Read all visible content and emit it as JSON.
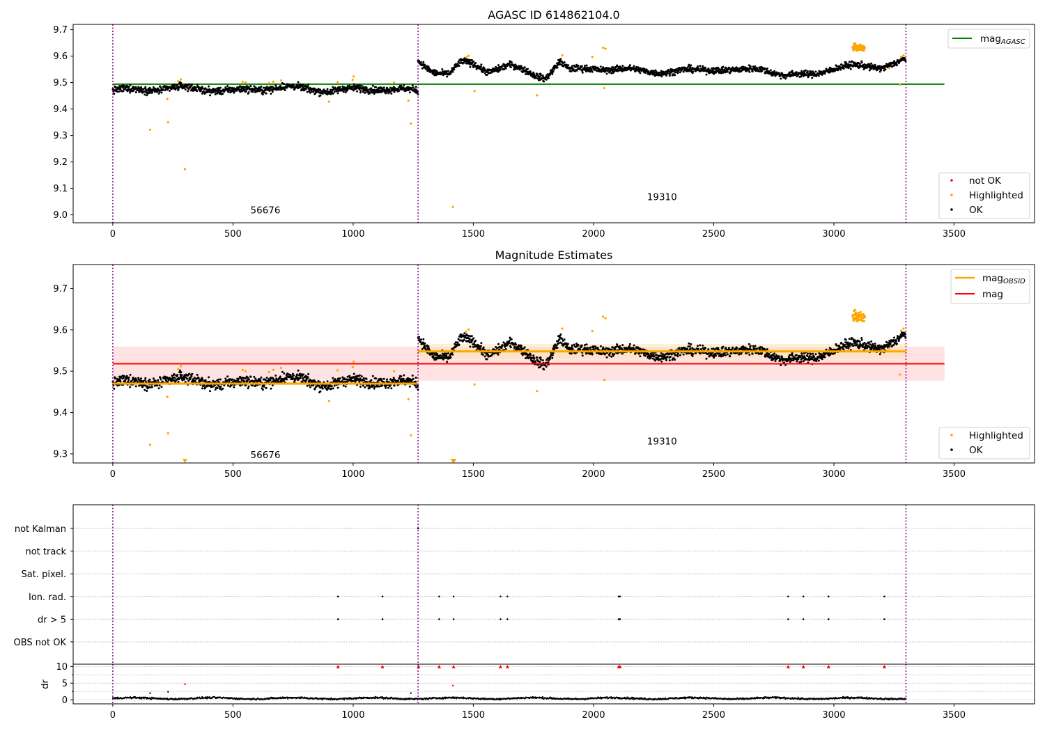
{
  "figure": {
    "top_title": "AGASC ID 614862104.0",
    "middle_title": "Magnitude Estimates"
  },
  "colors": {
    "ok": "#000000",
    "highlighted": "#ffa500",
    "not_ok": "#ff0000",
    "mag_agasc": "#008000",
    "mag_obsid": "#ffa500",
    "mag": "#ff0000",
    "obs_boundary": "#800080",
    "band_red": "#ffdddd",
    "band_orange": "#ffe4b5",
    "flag_grid": "#b0b0b0"
  },
  "chart_data": [
    {
      "type": "scatter",
      "title": "AGASC ID 614862104.0",
      "xlim": [
        -165,
        3835
      ],
      "ylim": [
        8.97,
        9.72
      ],
      "x_ticks": [
        0,
        500,
        1000,
        1500,
        2000,
        2500,
        3000,
        3500
      ],
      "y_ticks": [
        9.0,
        9.1,
        9.2,
        9.3,
        9.4,
        9.5,
        9.6,
        9.7
      ],
      "y_tick_labels": [
        "9.0",
        "9.1",
        "9.2",
        "9.3",
        "9.4",
        "9.5",
        "9.6",
        "9.7"
      ],
      "obsid_boundaries": [
        0,
        1270,
        3300
      ],
      "obsid_labels": [
        {
          "text": "56676",
          "x": 635,
          "y": 9.005
        },
        {
          "text": "19310",
          "x": 2285,
          "y": 9.055
        }
      ],
      "mag_agasc": {
        "value": 9.494,
        "x_range": [
          0,
          3460
        ]
      },
      "legend_top": [
        "mag",
        "AGASC"
      ],
      "legend_bottom": [
        "not OK",
        "Highlighted",
        "OK"
      ],
      "segments": [
        {
          "x_range": [
            0,
            1270
          ],
          "trend": [
            [
              0,
              9.47
            ],
            [
              300,
              9.48
            ],
            [
              500,
              9.468
            ],
            [
              700,
              9.483
            ],
            [
              900,
              9.47
            ],
            [
              1100,
              9.478
            ],
            [
              1270,
              9.468
            ]
          ],
          "scatter": 0.013
        },
        {
          "x_range": [
            1270,
            3300
          ],
          "trend": [
            [
              1270,
              9.58
            ],
            [
              1330,
              9.545
            ],
            [
              1400,
              9.532
            ],
            [
              1450,
              9.575
            ],
            [
              1500,
              9.57
            ],
            [
              1560,
              9.545
            ],
            [
              1650,
              9.565
            ],
            [
              1750,
              9.53
            ],
            [
              1800,
              9.52
            ],
            [
              1860,
              9.58
            ],
            [
              1900,
              9.545
            ],
            [
              2000,
              9.555
            ],
            [
              2100,
              9.55
            ],
            [
              2200,
              9.545
            ],
            [
              2300,
              9.54
            ],
            [
              2400,
              9.545
            ],
            [
              2500,
              9.553
            ],
            [
              2600,
              9.543
            ],
            [
              2700,
              9.555
            ],
            [
              2800,
              9.525
            ],
            [
              2900,
              9.53
            ],
            [
              3000,
              9.555
            ],
            [
              3080,
              9.562
            ],
            [
              3200,
              9.56
            ],
            [
              3300,
              9.585
            ]
          ],
          "scatter": 0.012
        }
      ],
      "highlighted_clusters": [
        {
          "x_range": [
            3078,
            3130
          ],
          "y_center": 9.632,
          "spread": 0.012
        }
      ],
      "highlighted_points": [
        [
          155,
          9.322
        ],
        [
          230,
          9.35
        ],
        [
          227,
          9.438
        ],
        [
          272,
          9.505
        ],
        [
          283,
          9.512
        ],
        [
          300,
          9.173
        ],
        [
          540,
          9.503
        ],
        [
          552,
          9.5
        ],
        [
          650,
          9.498
        ],
        [
          668,
          9.503
        ],
        [
          700,
          9.508
        ],
        [
          900,
          9.428
        ],
        [
          935,
          9.502
        ],
        [
          998,
          9.51
        ],
        [
          1002,
          9.523
        ],
        [
          1170,
          9.5
        ],
        [
          1230,
          9.432
        ],
        [
          1240,
          9.345
        ],
        [
          1415,
          9.03
        ],
        [
          1470,
          9.596
        ],
        [
          1480,
          9.601
        ],
        [
          1505,
          9.468
        ],
        [
          1765,
          9.452
        ],
        [
          1870,
          9.603
        ],
        [
          1995,
          9.597
        ],
        [
          2040,
          9.632
        ],
        [
          2050,
          9.628
        ],
        [
          2045,
          9.479
        ],
        [
          3275,
          9.492
        ],
        [
          3280,
          9.598
        ],
        [
          3290,
          9.603
        ],
        [
          3230,
          9.555
        ]
      ]
    },
    {
      "type": "scatter",
      "title": "Magnitude Estimates",
      "xlim": [
        -165,
        3835
      ],
      "ylim": [
        9.278,
        9.758
      ],
      "x_ticks": [
        0,
        500,
        1000,
        1500,
        2000,
        2500,
        3000,
        3500
      ],
      "y_ticks": [
        9.3,
        9.4,
        9.5,
        9.6,
        9.7
      ],
      "y_tick_labels": [
        "9.3",
        "9.4",
        "9.5",
        "9.6",
        "9.7"
      ],
      "obsid_boundaries": [
        0,
        1270,
        3300
      ],
      "obsid_labels": [
        {
          "text": "56676",
          "x": 635,
          "y": 9.29
        },
        {
          "text": "19310",
          "x": 2285,
          "y": 9.323
        }
      ],
      "mag": {
        "value": 9.518,
        "band": [
          9.477,
          9.559
        ],
        "x_range": [
          0,
          3460
        ]
      },
      "mag_obsid": [
        {
          "value": 9.47,
          "x_range": [
            0,
            1270
          ],
          "band": [
            9.466,
            9.474
          ]
        },
        {
          "value": 9.548,
          "x_range": [
            1270,
            3300
          ],
          "band": [
            9.53,
            9.566
          ]
        }
      ],
      "legend_top": [
        [
          "mag",
          "OBSID"
        ],
        [
          "mag",
          ""
        ]
      ],
      "legend_bottom": [
        "Highlighted",
        "OK"
      ],
      "offscale_markers": [
        [
          300,
          9.283
        ],
        [
          1415,
          9.283
        ],
        [
          1420,
          9.283
        ]
      ]
    },
    {
      "type": "scatter",
      "title": "",
      "xlim": [
        -165,
        3835
      ],
      "x_ticks": [
        0,
        500,
        1000,
        1500,
        2000,
        2500,
        3000,
        3500
      ],
      "obsid_boundaries": [
        0,
        1270,
        3300
      ],
      "flag_rows": [
        "not Kalman",
        "not track",
        "Sat. pixel.",
        "Ion. rad.",
        "dr > 5",
        "OBS not OK"
      ],
      "flag_points": {
        "not Kalman": [
          1270
        ],
        "Ion. rad.": [
          937,
          1122,
          1358,
          1418,
          1613,
          1642,
          2105,
          2110,
          2810,
          2873,
          2978,
          3210
        ],
        "dr > 5": [
          937,
          1122,
          1358,
          1418,
          1613,
          1642,
          2105,
          2110,
          2810,
          2873,
          2978,
          3210
        ]
      },
      "dr": {
        "ylim": [
          -1.2,
          10.7
        ],
        "y_ticks": [
          0,
          5,
          10
        ],
        "y_tick_labels": [
          "0",
          "5",
          "10"
        ],
        "ylabel": "dr",
        "minor_grid": [
          2.5,
          7.5
        ],
        "clipped_points": [
          937,
          1122,
          1272,
          1358,
          1418,
          1613,
          1642,
          2105,
          2110,
          2810,
          2873,
          2978,
          3210
        ],
        "outliers": [
          [
            155,
            2.0
          ],
          [
            230,
            2.4
          ],
          [
            300,
            4.7
          ],
          [
            1415,
            4.3
          ],
          [
            1240,
            2.0
          ]
        ]
      }
    }
  ]
}
